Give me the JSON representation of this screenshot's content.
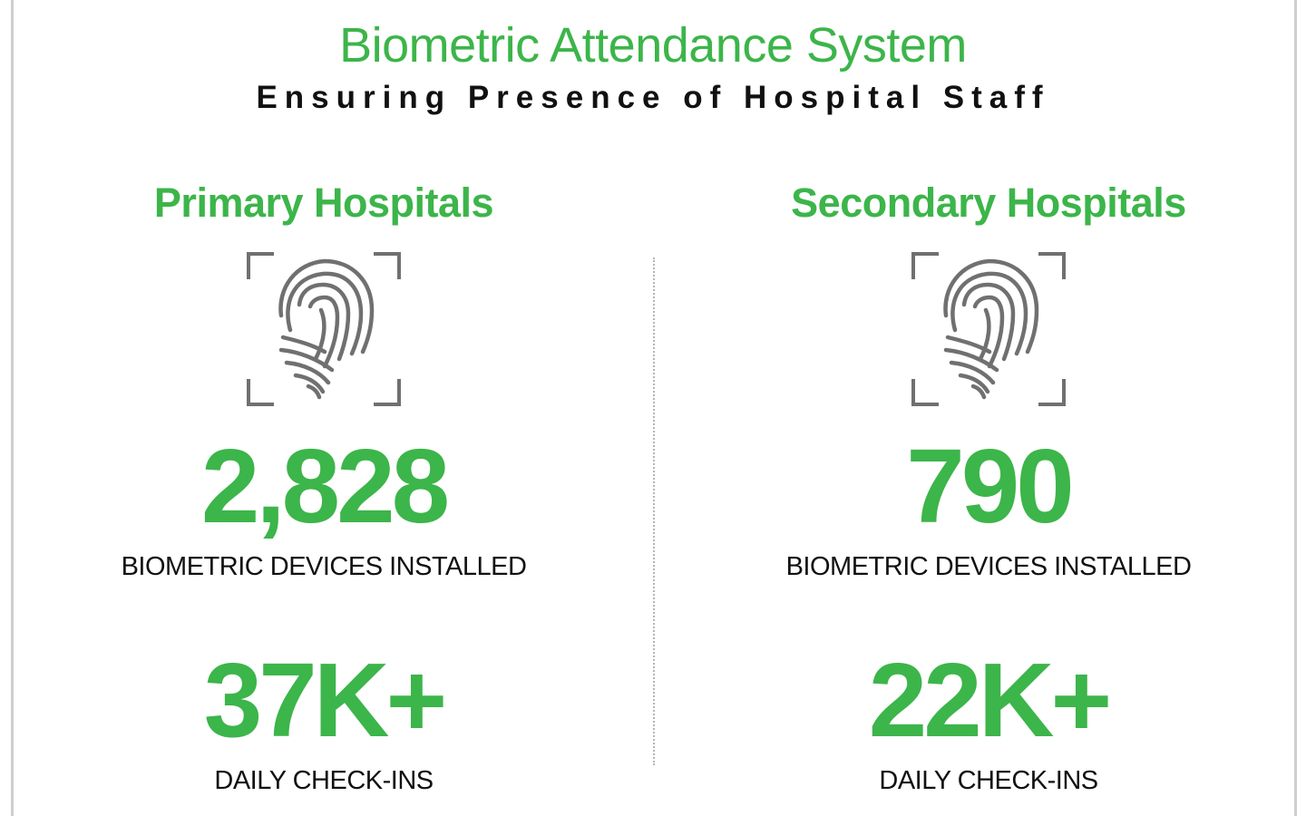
{
  "header": {
    "title": "Biometric Attendance System",
    "subtitle": "Ensuring Presence of Hospital Staff"
  },
  "colors": {
    "accent": "#3cb54a",
    "text": "#111111",
    "icon": "#707070"
  },
  "columns": [
    {
      "title": "Primary Hospitals",
      "icon": "fingerprint-icon",
      "devices_value": "2,828",
      "devices_label": "BIOMETRIC DEVICES INSTALLED",
      "checkins_value": "37K+",
      "checkins_label": "DAILY CHECK-INS"
    },
    {
      "title": "Secondary Hospitals",
      "icon": "fingerprint-icon",
      "devices_value": "790",
      "devices_label": "BIOMETRIC DEVICES INSTALLED",
      "checkins_value": "22K+",
      "checkins_label": "DAILY CHECK-INS"
    }
  ]
}
